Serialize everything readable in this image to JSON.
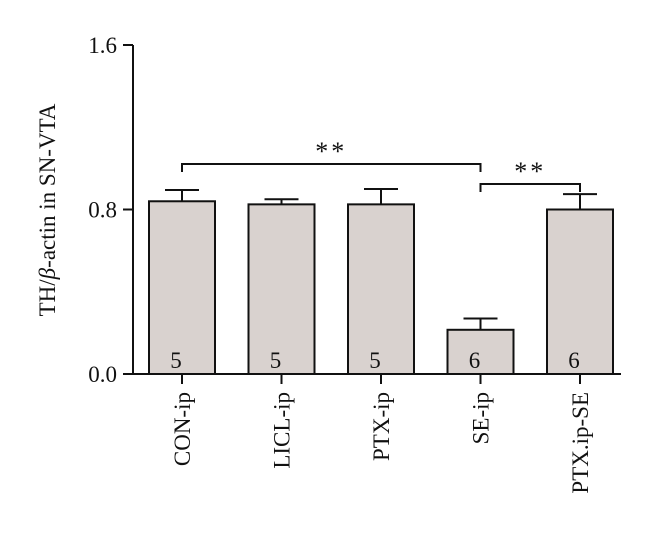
{
  "chart_data": {
    "type": "bar",
    "ylabel_prefix": "TH/",
    "ylabel_greek": "β",
    "ylabel_suffix": "-actin in SN-VTA",
    "ylim": [
      0.0,
      1.6
    ],
    "yticks": [
      {
        "value": 0.0,
        "label": "0.0"
      },
      {
        "value": 0.8,
        "label": "0.8"
      },
      {
        "value": 1.6,
        "label": "1.6"
      }
    ],
    "categories": [
      "CON-ip",
      "LICL-ip",
      "PTX-ip",
      "SE-ip",
      "PTX.ip-SE"
    ],
    "values": [
      0.84,
      0.825,
      0.825,
      0.215,
      0.8
    ],
    "errors": [
      0.055,
      0.025,
      0.075,
      0.055,
      0.075
    ],
    "n": [
      "5",
      "5",
      "5",
      "6",
      "6"
    ],
    "bar_color": "#d9d2cf",
    "significance": [
      {
        "from": 0,
        "to": 3,
        "label": "**"
      },
      {
        "from": 3,
        "to": 4,
        "label": "**"
      }
    ]
  }
}
